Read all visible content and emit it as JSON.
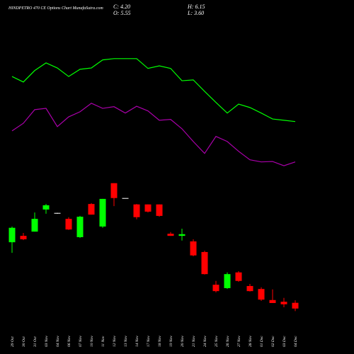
{
  "chart_data": {
    "type": "candlestick",
    "title": "HINDPETRO 470 CE Options Chart MunafaSutra.com",
    "stats": [
      "C: 4.20",
      "O: 5.55",
      "H: 6.15",
      "L: 3.60"
    ],
    "categories": [
      "29 Oct",
      "30 Oct",
      "31 Oct",
      "03 Nov",
      "04 Nov",
      "06 Nov",
      "07 Nov",
      "10 Nov",
      "11 Nov",
      "12 Nov",
      "13 Nov",
      "14 Nov",
      "17 Nov",
      "18 Nov",
      "19 Nov",
      "20 Nov",
      "21 Nov",
      "24 Nov",
      "25 Nov",
      "26 Nov",
      "27 Nov",
      "28 Nov",
      "01 Dec",
      "02 Dec",
      "03 Dec",
      "04 Dec"
    ],
    "open": [
      19.8,
      21.3,
      22.3,
      27.5,
      26.7,
      25.3,
      21.0,
      28.8,
      23.5,
      33.7,
      30.2,
      28.7,
      28.7,
      28.7,
      21.8,
      21.3,
      20.0,
      17.5,
      9.8,
      9.0,
      12.7,
      9.5,
      8.8,
      6.2,
      5.8,
      5.55
    ],
    "close": [
      23.2,
      20.5,
      25.3,
      28.5,
      26.7,
      22.8,
      25.8,
      26.3,
      30.0,
      30.2,
      30.2,
      25.7,
      27.0,
      26.0,
      21.3,
      21.7,
      16.7,
      12.3,
      8.3,
      12.3,
      10.7,
      8.3,
      6.3,
      5.5,
      5.2,
      4.2
    ],
    "high": [
      23.5,
      22.0,
      26.8,
      28.8,
      26.7,
      25.7,
      26.0,
      29.0,
      30.0,
      33.7,
      30.2,
      28.8,
      28.7,
      28.7,
      22.2,
      23.0,
      20.5,
      17.8,
      10.7,
      12.7,
      13.0,
      10.0,
      9.2,
      8.7,
      6.7,
      6.15
    ],
    "low": [
      17.3,
      20.3,
      22.3,
      26.5,
      26.5,
      22.7,
      20.8,
      26.3,
      23.2,
      28.3,
      30.2,
      25.2,
      26.8,
      25.8,
      21.3,
      20.2,
      16.5,
      12.2,
      8.0,
      8.8,
      10.5,
      8.2,
      6.0,
      5.5,
      4.5,
      3.6
    ],
    "up_color": "#00ff00",
    "down_color": "#ff0000",
    "flat_color": "#ffffff",
    "lines": [
      {
        "color": "#00ff00",
        "values": [
          58.8,
          57.5,
          60.2,
          62.0,
          60.8,
          58.8,
          60.5,
          60.8,
          62.7,
          63.0,
          63.0,
          63.0,
          60.7,
          61.3,
          60.7,
          57.8,
          58.0,
          55.3,
          52.7,
          50.2,
          52.3,
          51.5,
          50.2,
          48.8,
          48.5,
          48.2
        ]
      },
      {
        "color": "#aa00aa",
        "values": [
          46.0,
          47.8,
          51.0,
          51.3,
          47.0,
          49.3,
          50.5,
          52.5,
          51.3,
          51.7,
          50.2,
          51.8,
          50.7,
          48.5,
          48.7,
          46.5,
          43.5,
          40.7,
          44.7,
          43.5,
          41.2,
          39.2,
          38.7,
          38.8,
          37.8,
          38.7
        ]
      }
    ],
    "ylim": [
      0,
      76.8
    ]
  }
}
